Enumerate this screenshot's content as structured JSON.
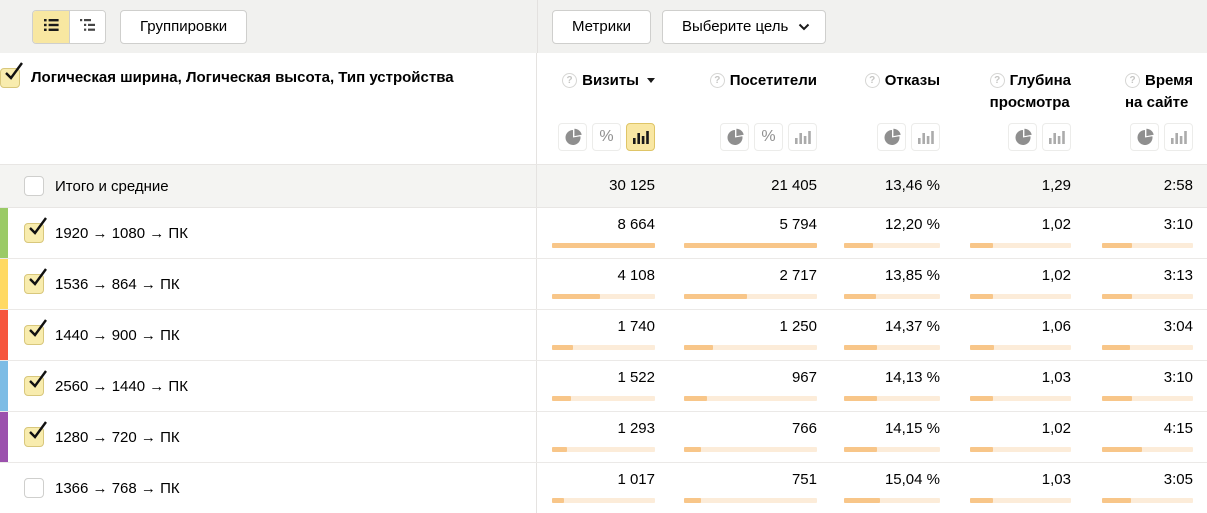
{
  "toolbar": {
    "groupings_button": "Группировки",
    "metrics_button": "Метрики",
    "goal_button": "Выберите цель"
  },
  "icons": {
    "help": "?",
    "percent": "%"
  },
  "table": {
    "dimension_header": "Логическая ширина, Логическая высота, Тип устройства",
    "header_checked": true,
    "columns": [
      {
        "label": "Визиты",
        "label_line1": "Визиты",
        "label_line2": "",
        "sorted": "desc",
        "modes": [
          "pie",
          "percent",
          "bars"
        ],
        "active_mode": "bars"
      },
      {
        "label": "Посетители",
        "label_line1": "Посетители",
        "label_line2": "",
        "modes": [
          "pie",
          "percent",
          "bars"
        ],
        "active_mode": null
      },
      {
        "label": "Отказы",
        "label_line1": "Отказы",
        "label_line2": "",
        "modes": [
          "pie",
          "bars"
        ],
        "active_mode": null
      },
      {
        "label": "Глубина просмотра",
        "label_line1": "Глубина",
        "label_line2": "просмотра",
        "modes": [
          "pie",
          "bars"
        ],
        "active_mode": null
      },
      {
        "label": "Время на сайте",
        "label_line1": "Время",
        "label_line2": "на сайте",
        "modes": [
          "pie",
          "bars"
        ],
        "active_mode": null
      }
    ],
    "totals": {
      "label": "Итого и средние",
      "checked": false,
      "values": [
        "30 125",
        "21 405",
        "13,46 %",
        "1,29",
        "2:58"
      ]
    },
    "rows": [
      {
        "label": "1920 → 1080 → ПК",
        "checked": true,
        "color": "#9aca66",
        "values": [
          "8 664",
          "5 794",
          "12,20 %",
          "1,02",
          "3:10"
        ],
        "bars": [
          1.0,
          1.0,
          0.3,
          0.23,
          0.33
        ]
      },
      {
        "label": "1536 → 864 → ПК",
        "checked": true,
        "color": "#ffd962",
        "values": [
          "4 108",
          "2 717",
          "13,85 %",
          "1,02",
          "3:13"
        ],
        "bars": [
          0.47,
          0.47,
          0.33,
          0.23,
          0.33
        ]
      },
      {
        "label": "1440 → 900 → ПК",
        "checked": true,
        "color": "#f6563e",
        "values": [
          "1 740",
          "1 250",
          "14,37 %",
          "1,06",
          "3:04"
        ],
        "bars": [
          0.2,
          0.22,
          0.34,
          0.24,
          0.31
        ]
      },
      {
        "label": "2560 → 1440 → ПК",
        "checked": true,
        "color": "#7dbce5",
        "values": [
          "1 522",
          "967",
          "14,13 %",
          "1,03",
          "3:10"
        ],
        "bars": [
          0.18,
          0.17,
          0.34,
          0.23,
          0.33
        ]
      },
      {
        "label": "1280 → 720 → ПК",
        "checked": true,
        "color": "#9b51ad",
        "values": [
          "1 293",
          "766",
          "14,15 %",
          "1,02",
          "4:15"
        ],
        "bars": [
          0.15,
          0.13,
          0.34,
          0.23,
          0.44
        ]
      },
      {
        "label": "1366 → 768 → ПК",
        "checked": false,
        "color": null,
        "values": [
          "1 017",
          "751",
          "15,04 %",
          "1,03",
          "3:05"
        ],
        "bars": [
          0.12,
          0.13,
          0.37,
          0.23,
          0.32
        ]
      }
    ]
  }
}
